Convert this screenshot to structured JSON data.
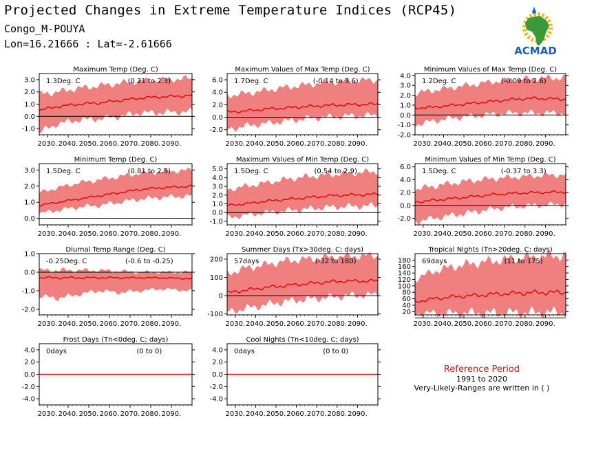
{
  "header": {
    "title": "Projected Changes in Extreme Temperature Indices (RCP45)",
    "location": "Congo_M-POUYA",
    "coords": "Lon=16.21666 : Lat=-2.61666"
  },
  "logo": {
    "text": "ACMAD",
    "icon": "africa-map-sun-logo"
  },
  "reference": {
    "title": "Reference Period",
    "years": "1991 to 2020",
    "note": "Very-Likely-Ranges are written in ( )"
  },
  "colors": {
    "band": "#f08080",
    "line": "#e01010",
    "zero": "#000000",
    "ref_title": "#d01818"
  },
  "chart_data": [
    {
      "type": "area",
      "title": "Maximum Temp (Deg. C)",
      "mean_label": "1.3Deg. C",
      "range_label": "(0.21 to 2.3)",
      "xticks": [
        "2030.",
        "2040.",
        "2050.",
        "2060.",
        "2070.",
        "2080.",
        "2090."
      ],
      "xlim": [
        2026,
        2100
      ],
      "ylim": [
        -1.5,
        3.5
      ],
      "yticks": [
        -1.0,
        0.0,
        1.0,
        2.0,
        3.0
      ],
      "ytick_labels": [
        "-1.0",
        "0.0",
        "1.0",
        "2.0",
        "3.0"
      ],
      "series": [
        {
          "x": [
            2026,
            2035,
            2045,
            2055,
            2065,
            2075,
            2085,
            2100
          ],
          "y": [
            0.5,
            0.8,
            1.0,
            1.1,
            1.3,
            1.5,
            1.6,
            1.7
          ],
          "lower": [
            -1.3,
            -0.6,
            -0.3,
            -0.2,
            0.0,
            0.3,
            0.3,
            0.4
          ],
          "upper": [
            1.8,
            2.0,
            2.3,
            2.5,
            2.7,
            2.9,
            3.0,
            3.1
          ]
        }
      ]
    },
    {
      "type": "area",
      "title": "Maximum Values of Max Temp (Deg. C)",
      "mean_label": "1.7Deg. C",
      "range_label": "(-0.14 to 3.6)",
      "xticks": [
        "2030.",
        "2040.",
        "2050.",
        "2060.",
        "2070.",
        "2080.",
        "2090."
      ],
      "xlim": [
        2026,
        2100
      ],
      "ylim": [
        -2.8,
        7.0
      ],
      "yticks": [
        -2.0,
        0.0,
        2.0,
        4.0,
        6.0
      ],
      "ytick_labels": [
        "-2.0",
        "0.0",
        "2.0",
        "4.0",
        "6.0"
      ],
      "series": [
        {
          "x": [
            2026,
            2035,
            2045,
            2055,
            2065,
            2075,
            2085,
            2100
          ],
          "y": [
            0.8,
            1.0,
            1.3,
            1.5,
            1.7,
            1.9,
            2.0,
            2.1
          ],
          "lower": [
            -2.0,
            -1.4,
            -1.0,
            -0.6,
            -0.2,
            0.0,
            0.2,
            0.3
          ],
          "upper": [
            3.5,
            3.8,
            4.3,
            4.8,
            5.2,
            5.6,
            5.8,
            6.0
          ]
        }
      ]
    },
    {
      "type": "area",
      "title": "Minimum Values of Max Temp (Deg. C)",
      "mean_label": "1.2Deg. C",
      "range_label": "(-0.09 to 2.6)",
      "xticks": [
        "2030.",
        "2040.",
        "2050.",
        "2060.",
        "2070.",
        "2080.",
        "2090."
      ],
      "xlim": [
        2026,
        2100
      ],
      "ylim": [
        -2.0,
        4.2
      ],
      "yticks": [
        -2.0,
        -1.0,
        0.0,
        1.0,
        2.0,
        3.0,
        4.0
      ],
      "ytick_labels": [
        "-2.0",
        "-1.0",
        "0.0",
        "1.0",
        "2.0",
        "3.0",
        "4.0"
      ],
      "series": [
        {
          "x": [
            2026,
            2035,
            2045,
            2055,
            2065,
            2075,
            2085,
            2100
          ],
          "y": [
            0.7,
            0.8,
            1.0,
            1.2,
            1.4,
            1.6,
            1.7,
            1.6
          ],
          "lower": [
            -1.0,
            -0.6,
            -0.3,
            -0.1,
            0.1,
            0.2,
            0.2,
            0.2
          ],
          "upper": [
            2.2,
            2.5,
            2.8,
            3.1,
            3.4,
            3.6,
            3.7,
            3.8
          ]
        }
      ]
    },
    {
      "type": "area",
      "title": "Minimum Temp (Deg. C)",
      "mean_label": "1.5Deg. C",
      "range_label": "(0.81 to 2.5)",
      "xticks": [
        "2030.",
        "2040.",
        "2050.",
        "2060.",
        "2070.",
        "2080.",
        "2090."
      ],
      "xlim": [
        2026,
        2100
      ],
      "ylim": [
        -0.4,
        3.4
      ],
      "yticks": [
        0.0,
        1.0,
        2.0,
        3.0
      ],
      "ytick_labels": [
        "0.0",
        "1.0",
        "2.0",
        "3.0"
      ],
      "series": [
        {
          "x": [
            2026,
            2035,
            2045,
            2055,
            2065,
            2075,
            2085,
            2100
          ],
          "y": [
            0.8,
            1.0,
            1.2,
            1.4,
            1.6,
            1.8,
            1.9,
            2.0
          ],
          "lower": [
            0.3,
            0.5,
            0.7,
            0.8,
            1.0,
            1.2,
            1.3,
            1.4
          ],
          "upper": [
            1.6,
            1.9,
            2.2,
            2.4,
            2.6,
            2.8,
            2.9,
            3.0
          ]
        }
      ]
    },
    {
      "type": "area",
      "title": "Maximum Values of Min Temp (Deg. C)",
      "mean_label": "1.5Deg. C",
      "range_label": "(0.54 to 2.9)",
      "xticks": [
        "2030.",
        "2040.",
        "2050.",
        "2060.",
        "2070.",
        "2080.",
        "2090."
      ],
      "xlim": [
        2026,
        2100
      ],
      "ylim": [
        -1.4,
        5.6
      ],
      "yticks": [
        -1.0,
        0.0,
        1.0,
        2.0,
        3.0,
        4.0,
        5.0
      ],
      "ytick_labels": [
        "-1.0",
        "0.0",
        "1.0",
        "2.0",
        "3.0",
        "4.0",
        "5.0"
      ],
      "series": [
        {
          "x": [
            2026,
            2035,
            2045,
            2055,
            2065,
            2075,
            2085,
            2100
          ],
          "y": [
            0.8,
            1.0,
            1.3,
            1.5,
            1.7,
            1.9,
            2.0,
            2.1
          ],
          "lower": [
            -0.6,
            -0.3,
            0.0,
            0.2,
            0.4,
            0.6,
            0.7,
            0.8
          ],
          "upper": [
            2.6,
            3.0,
            3.4,
            3.8,
            4.1,
            4.3,
            4.5,
            4.7
          ]
        }
      ]
    },
    {
      "type": "area",
      "title": "Minimum Values of Min Temp (Deg. C)",
      "mean_label": "1.5Deg. C",
      "range_label": "(-0.37 to 3.3)",
      "xticks": [
        "2030.",
        "2040.",
        "2050.",
        "2060.",
        "2070.",
        "2080.",
        "2090."
      ],
      "xlim": [
        2026,
        2100
      ],
      "ylim": [
        -3.0,
        6.5
      ],
      "yticks": [
        -2.0,
        0.0,
        2.0,
        4.0,
        6.0
      ],
      "ytick_labels": [
        "-2.0",
        "0.0",
        "2.0",
        "4.0",
        "6.0"
      ],
      "series": [
        {
          "x": [
            2026,
            2035,
            2045,
            2055,
            2065,
            2075,
            2085,
            2100
          ],
          "y": [
            0.5,
            0.8,
            1.1,
            1.4,
            1.7,
            1.9,
            2.0,
            2.1
          ],
          "lower": [
            -2.5,
            -2.0,
            -1.5,
            -1.0,
            -0.5,
            -0.2,
            0.0,
            0.2
          ],
          "upper": [
            2.5,
            3.0,
            3.5,
            3.9,
            4.2,
            4.4,
            4.6,
            4.8
          ]
        }
      ]
    },
    {
      "type": "area",
      "title": "Diurnal Temp Range (Deg. C)",
      "mean_label": "-0.25Deg. C",
      "range_label": "(-0.6 to -0.25)",
      "xticks": [
        "2030.",
        "2040.",
        "2050.",
        "2060.",
        "2070.",
        "2080.",
        "2090."
      ],
      "xlim": [
        2026,
        2100
      ],
      "ylim": [
        -2.3,
        1.0
      ],
      "yticks": [
        -2.0,
        -1.0,
        0.0,
        1.0
      ],
      "ytick_labels": [
        "-2.0",
        "-1.0",
        "0.0",
        "1.0"
      ],
      "series": [
        {
          "x": [
            2026,
            2035,
            2045,
            2055,
            2065,
            2075,
            2085,
            2100
          ],
          "y": [
            -0.3,
            -0.3,
            -0.3,
            -0.3,
            -0.3,
            -0.3,
            -0.3,
            -0.35
          ],
          "lower": [
            -1.3,
            -1.4,
            -1.2,
            -1.0,
            -1.1,
            -1.0,
            -0.9,
            -1.0
          ],
          "upper": [
            0.1,
            0.1,
            0.1,
            0.1,
            0.05,
            0.0,
            0.0,
            0.0
          ]
        }
      ]
    },
    {
      "type": "area",
      "title": "Summer Days (Tx>30deg. C; days)",
      "mean_label": "57days",
      "range_label": "(-32 to 180)",
      "xticks": [
        "2030.",
        "2040.",
        "2050.",
        "2060.",
        "2070.",
        "2080.",
        "2090."
      ],
      "xlim": [
        2026,
        2100
      ],
      "ylim": [
        -105,
        230
      ],
      "yticks": [
        -100,
        0,
        100,
        200
      ],
      "ytick_labels": [
        "-100",
        "0",
        "100",
        "200"
      ],
      "series": [
        {
          "x": [
            2026,
            2035,
            2045,
            2055,
            2065,
            2075,
            2085,
            2100
          ],
          "y": [
            15,
            30,
            45,
            55,
            65,
            75,
            80,
            80
          ],
          "lower": [
            -90,
            -70,
            -50,
            -30,
            -20,
            -10,
            0,
            5
          ],
          "upper": [
            120,
            150,
            170,
            190,
            200,
            210,
            215,
            220
          ]
        }
      ]
    },
    {
      "type": "area",
      "title": "Tropical Nights (Tn>20deg. C; days)",
      "mean_label": "69days",
      "range_label": "(11 to 175)",
      "xticks": [
        "2030.",
        "2040.",
        "2050.",
        "2060.",
        "2070.",
        "2080.",
        "2090."
      ],
      "xlim": [
        2026,
        2100
      ],
      "ylim": [
        10,
        200
      ],
      "yticks": [
        20,
        40,
        60,
        80,
        100,
        120,
        140,
        160,
        180
      ],
      "ytick_labels": [
        "20",
        "40",
        "60",
        "80",
        "100",
        "120",
        "140",
        "160",
        "180"
      ],
      "series": [
        {
          "x": [
            2026,
            2035,
            2045,
            2055,
            2065,
            2075,
            2085,
            2100
          ],
          "y": [
            50,
            60,
            66,
            70,
            74,
            77,
            79,
            80
          ],
          "lower": [
            15,
            15,
            15,
            16,
            16,
            17,
            17,
            18
          ],
          "upper": [
            120,
            145,
            160,
            170,
            178,
            185,
            190,
            195
          ]
        }
      ]
    },
    {
      "type": "area",
      "title": "Frost Days (Tn<0deg. C; days)",
      "mean_label": "0days",
      "range_label": "(0 to 0)",
      "xticks": [
        "2030.",
        "2040.",
        "2050.",
        "2060.",
        "2070.",
        "2080.",
        "2090."
      ],
      "xlim": [
        2026,
        2100
      ],
      "ylim": [
        -5,
        5
      ],
      "yticks": [
        -4.0,
        -2.0,
        0.0,
        2.0,
        4.0
      ],
      "ytick_labels": [
        "-4.0",
        "-2.0",
        "0.0",
        "2.0",
        "4.0"
      ],
      "series": [
        {
          "x": [
            2026,
            2100
          ],
          "y": [
            0,
            0
          ],
          "lower": [
            0,
            0
          ],
          "upper": [
            0,
            0
          ]
        }
      ]
    },
    {
      "type": "area",
      "title": "Cool Nights (Tn<10deg. C; days)",
      "mean_label": "0days",
      "range_label": "(0 to 0)",
      "xticks": [
        "2030.",
        "2040.",
        "2050.",
        "2060.",
        "2070.",
        "2080.",
        "2090."
      ],
      "xlim": [
        2026,
        2100
      ],
      "ylim": [
        -5,
        5
      ],
      "yticks": [
        -4.0,
        -2.0,
        0.0,
        2.0,
        4.0
      ],
      "ytick_labels": [
        "-4.0",
        "-2.0",
        "0.0",
        "2.0",
        "4.0"
      ],
      "series": [
        {
          "x": [
            2026,
            2100
          ],
          "y": [
            0,
            0
          ],
          "lower": [
            0,
            0
          ],
          "upper": [
            0,
            0
          ]
        }
      ]
    }
  ]
}
